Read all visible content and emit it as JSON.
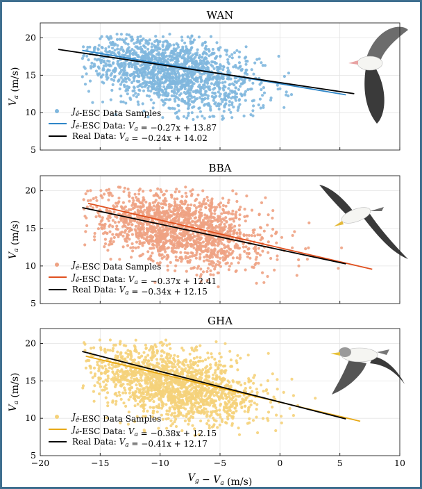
{
  "chart_data": [
    {
      "type": "scatter",
      "title": "WAN",
      "ylabel": "V_a (m/s)",
      "xlabel": "",
      "xlim": [
        -20,
        10
      ],
      "ylim": [
        5,
        22
      ],
      "yticks": [
        5,
        10,
        15,
        20
      ],
      "xticks": [
        -20,
        -15,
        -10,
        -5,
        0,
        5,
        10
      ],
      "grid": true,
      "legend": "bottom-left",
      "colors": {
        "points": "#7fb7de",
        "fit": "#2e86c8",
        "real": "#000000"
      },
      "illustration": "wandering-albatross",
      "samples": {
        "x_range": [
          -16.5,
          5.5
        ],
        "y_range": [
          9,
          20.5
        ],
        "center_x": -9,
        "center_y": 15.5
      },
      "series": [
        {
          "name": "J_ê-ESC Data Samples",
          "kind": "scatter"
        },
        {
          "name": "J_ê-ESC Data: V_a = −0.27x + 13.87",
          "kind": "line",
          "slope": -0.27,
          "intercept": 13.87,
          "x": [
            -16.5,
            5.5
          ]
        },
        {
          "name": "Real Data: V_a = −0.24x + 14.02",
          "kind": "line",
          "slope": -0.24,
          "intercept": 14.02,
          "x": [
            -18.5,
            6.2
          ]
        }
      ]
    },
    {
      "type": "scatter",
      "title": "BBA",
      "ylabel": "V_a (m/s)",
      "xlabel": "",
      "xlim": [
        -20,
        10
      ],
      "ylim": [
        5,
        22
      ],
      "yticks": [
        5,
        10,
        15,
        20
      ],
      "xticks": [
        -20,
        -15,
        -10,
        -5,
        0,
        5,
        10
      ],
      "grid": true,
      "legend": "bottom-left",
      "colors": {
        "points": "#eea283",
        "fit": "#e0501f",
        "real": "#000000"
      },
      "illustration": "black-browed-albatross",
      "samples": {
        "x_range": [
          -16.5,
          7.5
        ],
        "y_range": [
          7,
          20.5
        ],
        "center_x": -8.5,
        "center_y": 15
      },
      "series": [
        {
          "name": "J_ê-ESC Data Samples",
          "kind": "scatter"
        },
        {
          "name": "J_ê-ESC Data: V_a = −0.37x + 12.41",
          "kind": "line",
          "slope": -0.37,
          "intercept": 12.41,
          "x": [
            -16,
            7.7
          ]
        },
        {
          "name": "Real Data: V_a = −0.34x + 12.15",
          "kind": "line",
          "slope": -0.34,
          "intercept": 12.15,
          "x": [
            -16.5,
            5.5
          ]
        }
      ]
    },
    {
      "type": "scatter",
      "title": "GHA",
      "ylabel": "V_a (m/s)",
      "xlabel": "V_g − V_a (m/s)",
      "xlim": [
        -20,
        10
      ],
      "ylim": [
        5,
        22
      ],
      "yticks": [
        5,
        10,
        15,
        20
      ],
      "xticks": [
        -20,
        -15,
        -10,
        -5,
        0,
        5,
        10
      ],
      "grid": true,
      "legend": "bottom-left",
      "colors": {
        "points": "#f5d27a",
        "fit": "#e8a917",
        "real": "#000000"
      },
      "illustration": "grey-headed-albatross",
      "samples": {
        "x_range": [
          -16.5,
          5
        ],
        "y_range": [
          7.5,
          20.5
        ],
        "center_x": -9,
        "center_y": 14.5
      },
      "series": [
        {
          "name": "J_ê-ESC Data Samples",
          "kind": "scatter"
        },
        {
          "name": "J_ê-ESC Data: V_a = −0.38x + 12.15",
          "kind": "line",
          "slope": -0.38,
          "intercept": 12.15,
          "x": [
            -16.2,
            6.7
          ]
        },
        {
          "name": "Real Data: V_a = −0.41x + 12.17",
          "kind": "line",
          "slope": -0.41,
          "intercept": 12.17,
          "x": [
            -16.5,
            5.5
          ]
        }
      ]
    }
  ]
}
